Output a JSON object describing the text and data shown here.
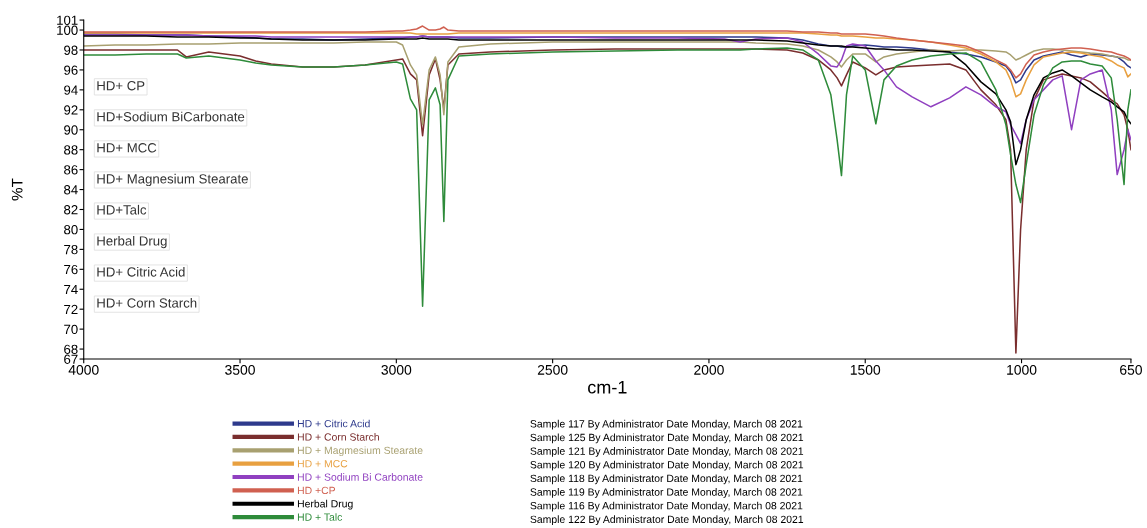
{
  "chart_data": {
    "type": "line",
    "xlabel": "cm-1",
    "ylabel": "%T",
    "x": [
      4000,
      3900,
      3800,
      3700,
      3672,
      3600,
      3500,
      3450,
      3400,
      3300,
      3200,
      3100,
      3000,
      2980,
      2955,
      2935,
      2916,
      2895,
      2875,
      2860,
      2848,
      2835,
      2800,
      2700,
      2500,
      2300,
      2100,
      1950,
      1900,
      1850,
      1750,
      1700,
      1650,
      1610,
      1590,
      1576,
      1560,
      1540,
      1500,
      1466,
      1440,
      1400,
      1350,
      1290,
      1230,
      1178,
      1130,
      1082,
      1050,
      1035,
      1018,
      1003,
      985,
      960,
      930,
      900,
      870,
      840,
      810,
      780,
      742,
      713,
      694,
      672,
      660,
      650
    ],
    "xlim": [
      4000,
      650
    ],
    "xticks": [
      4000,
      3500,
      3000,
      2500,
      2000,
      1500,
      1000,
      650
    ],
    "ylim": [
      67,
      101
    ],
    "yticks": [
      67,
      68,
      70,
      72,
      74,
      76,
      78,
      80,
      82,
      84,
      86,
      88,
      90,
      92,
      94,
      96,
      98,
      100,
      101
    ],
    "legend": "bottom",
    "grid": false,
    "marker": "none",
    "line_style": "solid",
    "series": [
      {
        "name": "HD + Citric Acid",
        "color": "#2e3a8c",
        "values": [
          99.6,
          99.6,
          99.5,
          99.5,
          99.5,
          99.4,
          99.3,
          99.2,
          99.1,
          99.1,
          99.0,
          99.1,
          99.2,
          99.2,
          99.3,
          99.3,
          99.4,
          99.3,
          99.3,
          99.3,
          99.3,
          99.3,
          99.2,
          99.2,
          99.3,
          99.3,
          99.3,
          99.3,
          99.3,
          99.3,
          99.2,
          99.0,
          98.6,
          98.4,
          98.4,
          98.3,
          98.3,
          98.4,
          98.5,
          98.4,
          98.3,
          98.3,
          98.2,
          98.0,
          97.8,
          97.6,
          97.3,
          96.8,
          96.4,
          95.8,
          94.7,
          95.0,
          96.0,
          97.0,
          97.4,
          97.6,
          97.8,
          97.5,
          97.3,
          97.6,
          97.5,
          97.4,
          97.3,
          96.8,
          96.4,
          96.2
        ]
      },
      {
        "name": "HD + Corn Starch",
        "color": "#7a2e2e",
        "values": [
          98.0,
          98.0,
          98.0,
          98.0,
          97.3,
          97.8,
          97.4,
          96.9,
          96.6,
          96.3,
          96.3,
          96.5,
          97.0,
          97.1,
          95.6,
          95.0,
          89.4,
          95.5,
          97.1,
          95.0,
          92.1,
          96.5,
          97.6,
          97.8,
          98.0,
          98.1,
          98.1,
          98.1,
          98.1,
          98.1,
          98.0,
          97.7,
          97.0,
          96.0,
          95.2,
          94.4,
          95.5,
          96.8,
          96.2,
          95.5,
          96.0,
          96.3,
          96.4,
          96.5,
          96.6,
          96.0,
          94.0,
          92.5,
          91.0,
          88.0,
          67.6,
          80.0,
          88.0,
          93.0,
          95.0,
          95.3,
          95.6,
          95.4,
          95.2,
          94.8,
          93.8,
          93.0,
          92.6,
          91.5,
          90.0,
          88.0
        ]
      },
      {
        "name": "HD + Magmesium Stearate",
        "color": "#a8a070",
        "values": [
          98.4,
          98.5,
          98.5,
          98.6,
          98.6,
          98.6,
          98.7,
          98.7,
          98.7,
          98.7,
          98.7,
          98.8,
          98.8,
          98.5,
          96.5,
          95.5,
          90.5,
          96.0,
          97.3,
          95.5,
          91.5,
          96.8,
          98.3,
          98.6,
          98.8,
          98.8,
          98.8,
          98.8,
          98.8,
          98.7,
          98.6,
          98.4,
          98.0,
          97.3,
          96.8,
          96.3,
          97.0,
          97.6,
          97.6,
          96.8,
          97.3,
          97.6,
          97.8,
          98.0,
          97.9,
          98.0,
          98.0,
          97.9,
          97.8,
          97.5,
          97.0,
          97.2,
          97.5,
          97.9,
          98.1,
          98.1,
          98.0,
          97.9,
          97.8,
          97.7,
          97.6,
          97.4,
          97.3,
          97.2,
          97.0,
          97.0
        ]
      },
      {
        "name": "HD + MCC",
        "color": "#e8a040",
        "values": [
          99.7,
          99.7,
          99.7,
          99.7,
          99.7,
          99.7,
          99.7,
          99.7,
          99.7,
          99.7,
          99.7,
          99.7,
          99.7,
          99.7,
          99.7,
          99.6,
          99.6,
          99.6,
          99.6,
          99.6,
          99.6,
          99.6,
          99.7,
          99.7,
          99.7,
          99.7,
          99.7,
          99.7,
          99.7,
          99.7,
          99.7,
          99.7,
          99.6,
          99.5,
          99.5,
          99.4,
          99.4,
          99.4,
          99.3,
          99.2,
          99.2,
          99.1,
          99.0,
          98.8,
          98.5,
          98.2,
          97.6,
          96.8,
          96.0,
          95.0,
          93.3,
          93.6,
          95.0,
          96.5,
          97.3,
          97.5,
          97.7,
          97.8,
          97.7,
          97.5,
          97.3,
          96.9,
          96.5,
          96.2,
          95.3,
          95.6
        ]
      },
      {
        "name": "HD + Sodium Bi Carbonate",
        "color": "#9040c0",
        "values": [
          99.5,
          99.5,
          99.5,
          99.5,
          99.5,
          99.4,
          99.4,
          99.4,
          99.3,
          99.3,
          99.3,
          99.3,
          99.3,
          99.3,
          99.3,
          99.3,
          99.4,
          99.3,
          99.3,
          99.3,
          99.3,
          99.3,
          99.3,
          99.3,
          99.3,
          99.2,
          99.2,
          99.1,
          98.8,
          99.1,
          99.2,
          98.8,
          97.6,
          96.4,
          96.3,
          97.0,
          98.4,
          98.6,
          98.4,
          96.9,
          96.0,
          94.3,
          93.3,
          92.3,
          93.2,
          94.3,
          93.5,
          92.3,
          91.8,
          90.5,
          89.5,
          88.6,
          91.0,
          93.0,
          94.0,
          95.0,
          95.4,
          90.0,
          95.0,
          95.6,
          96.0,
          92.0,
          85.5,
          88.0,
          90.0,
          89.0
        ]
      },
      {
        "name": "HD +CP",
        "color": "#d06050",
        "values": [
          99.8,
          99.8,
          99.8,
          99.8,
          99.8,
          99.8,
          99.8,
          99.8,
          99.8,
          99.8,
          99.8,
          99.8,
          99.9,
          99.9,
          100.0,
          100.1,
          100.4,
          100.0,
          100.0,
          100.1,
          100.3,
          100.0,
          99.9,
          99.9,
          99.9,
          99.9,
          99.9,
          99.9,
          99.9,
          99.9,
          99.9,
          99.8,
          99.8,
          99.7,
          99.7,
          99.6,
          99.6,
          99.6,
          99.6,
          99.5,
          99.4,
          99.2,
          99.0,
          98.8,
          98.6,
          98.4,
          97.8,
          97.0,
          96.5,
          96.0,
          95.2,
          95.6,
          96.6,
          97.5,
          97.8,
          98.0,
          98.1,
          98.2,
          98.2,
          98.1,
          97.9,
          97.8,
          97.6,
          97.4,
          97.2,
          97.0
        ]
      },
      {
        "name": "Herbal Drug",
        "color": "#000000",
        "values": [
          99.4,
          99.4,
          99.4,
          99.3,
          99.3,
          99.3,
          99.2,
          99.2,
          99.1,
          99.0,
          99.0,
          99.0,
          99.1,
          99.1,
          99.1,
          99.1,
          99.2,
          99.1,
          99.1,
          99.1,
          99.1,
          99.1,
          99.0,
          99.0,
          99.0,
          99.0,
          99.0,
          99.0,
          99.0,
          99.0,
          98.9,
          98.7,
          98.5,
          98.4,
          98.4,
          98.4,
          98.3,
          98.3,
          98.2,
          98.1,
          98.1,
          98.0,
          98.0,
          97.9,
          97.8,
          96.5,
          94.8,
          93.6,
          92.0,
          90.8,
          86.5,
          88.0,
          91.0,
          93.5,
          95.2,
          95.7,
          96.0,
          95.4,
          94.7,
          94.0,
          93.3,
          92.8,
          92.3,
          91.8,
          91.0,
          90.6
        ]
      },
      {
        "name": "HD + Talc",
        "color": "#2e8b3a",
        "values": [
          97.5,
          97.5,
          97.6,
          97.6,
          97.2,
          97.4,
          97.0,
          96.7,
          96.5,
          96.3,
          96.3,
          96.5,
          96.8,
          96.6,
          93.1,
          92.0,
          72.3,
          93.0,
          94.2,
          92.5,
          80.8,
          95.0,
          97.4,
          97.6,
          97.8,
          97.9,
          98.0,
          98.0,
          98.0,
          98.1,
          98.2,
          98.0,
          97.0,
          93.5,
          89.0,
          85.4,
          93.5,
          97.4,
          96.0,
          90.6,
          95.0,
          96.4,
          97.0,
          97.4,
          97.6,
          97.7,
          96.8,
          94.0,
          90.5,
          87.5,
          84.5,
          82.7,
          86.5,
          91.5,
          94.5,
          96.2,
          96.8,
          96.9,
          96.9,
          96.6,
          96.4,
          95.2,
          91.0,
          84.5,
          92.0,
          94.0
        ]
      }
    ],
    "annotations": [
      "HD+ CP",
      "HD+Sodium BiCarbonate",
      "HD+ MCC",
      "HD+ Magnesium Stearate",
      "HD+Talc",
      "Herbal Drug",
      "HD+ Citric Acid",
      "HD+ Corn Starch",
      "Sample 117 By Administrator Date Monday, March 08 2021",
      "Sample 125 By Administrator Date Monday, March 08 2021",
      "Sample 121 By Administrator Date Monday, March 08 2021",
      "Sample 120 By Administrator Date Monday, March 08 2021",
      "Sample 118 By Administrator Date Monday, March 08 2021",
      "Sample 119 By Administrator Date Monday, March 08 2021",
      "Sample 116 By Administrator Date Monday, March 08 2021",
      "Sample 122 By Administrator Date Monday, March 08 2021"
    ]
  }
}
